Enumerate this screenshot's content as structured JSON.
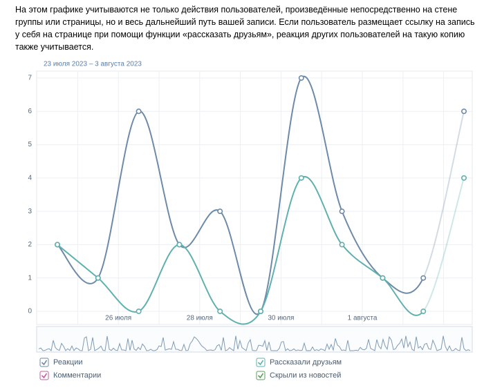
{
  "intro": "На этом графике учитываются не только действия пользователей, произведённые непосредственно на стене группы или страницы, но и весь дальнейший путь вашей записи. Если пользователь размещает ссылку на запись у себя на странице при помощи функции «рассказать друзьям», реакция других пользователей на такую копию также учитывается.",
  "chart_data": {
    "type": "line",
    "subtitle": "23 июля 2023 – 3 августа 2023",
    "categories": [
      null,
      null,
      "26 июля",
      null,
      "28 июля",
      null,
      "30 июля",
      null,
      "1 августа",
      null,
      null
    ],
    "series": [
      {
        "name": "Реакции",
        "color": "#6d8aa8",
        "values": [
          2,
          1,
          6,
          2,
          3,
          0,
          7,
          3,
          1,
          1,
          6
        ]
      },
      {
        "name": "Рассказали друзьям",
        "color": "#5fb0ae",
        "values": [
          2,
          1,
          0,
          2,
          0,
          0,
          4,
          2,
          1,
          0,
          4
        ]
      },
      {
        "name": "Комментарии",
        "color": "#c0609a"
      },
      {
        "name": "Скрыли из новостей",
        "color": "#5aa05a"
      }
    ],
    "ylim": [
      0,
      7
    ],
    "yticks": [
      0,
      1,
      2,
      3,
      4,
      5,
      6,
      7
    ],
    "grid": true
  }
}
